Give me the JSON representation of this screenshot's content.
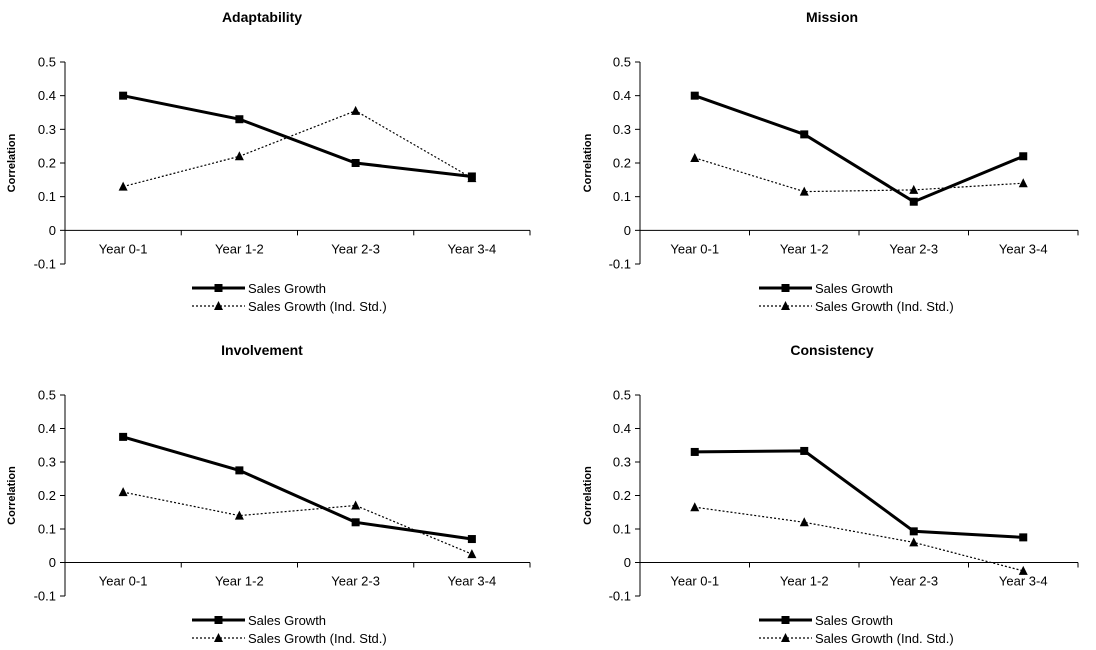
{
  "colors": {
    "line": "#000000",
    "background": "#ffffff"
  },
  "chart_data": [
    {
      "type": "line",
      "title": "Adaptability",
      "ylabel": "Correlation",
      "xlabel": "",
      "categories": [
        "Year 0-1",
        "Year 1-2",
        "Year 2-3",
        "Year 3-4"
      ],
      "ylim": [
        -0.1,
        0.5
      ],
      "yticks": [
        "0.5",
        "0.4",
        "0.3",
        "0.2",
        "0.1",
        "0",
        "-0.1"
      ],
      "grid": false,
      "legend_position": "bottom",
      "series": [
        {
          "name": "Sales Growth",
          "style": "solid",
          "marker": "square",
          "values": [
            0.4,
            0.33,
            0.2,
            0.16
          ]
        },
        {
          "name": "Sales Growth (Ind. Std.)",
          "style": "dotted",
          "marker": "triangle",
          "values": [
            0.13,
            0.22,
            0.355,
            0.155
          ]
        }
      ]
    },
    {
      "type": "line",
      "title": "Mission",
      "ylabel": "Correlation",
      "xlabel": "",
      "categories": [
        "Year 0-1",
        "Year 1-2",
        "Year 2-3",
        "Year 3-4"
      ],
      "ylim": [
        -0.1,
        0.5
      ],
      "yticks": [
        "0.5",
        "0.4",
        "0.3",
        "0.2",
        "0.1",
        "0",
        "-0.1"
      ],
      "grid": false,
      "legend_position": "bottom",
      "series": [
        {
          "name": "Sales Growth",
          "style": "solid",
          "marker": "square",
          "values": [
            0.4,
            0.285,
            0.085,
            0.22
          ]
        },
        {
          "name": "Sales Growth (Ind. Std.)",
          "style": "dotted",
          "marker": "triangle",
          "values": [
            0.215,
            0.115,
            0.12,
            0.14
          ]
        }
      ]
    },
    {
      "type": "line",
      "title": "Involvement",
      "ylabel": "Correlation",
      "xlabel": "",
      "categories": [
        "Year 0-1",
        "Year 1-2",
        "Year 2-3",
        "Year 3-4"
      ],
      "ylim": [
        -0.1,
        0.5
      ],
      "yticks": [
        "0.5",
        "0.4",
        "0.3",
        "0.2",
        "0.1",
        "0",
        "-0.1"
      ],
      "grid": false,
      "legend_position": "bottom",
      "series": [
        {
          "name": "Sales Growth",
          "style": "solid",
          "marker": "square",
          "values": [
            0.375,
            0.275,
            0.12,
            0.07
          ]
        },
        {
          "name": "Sales Growth (Ind. Std.)",
          "style": "dotted",
          "marker": "triangle",
          "values": [
            0.21,
            0.14,
            0.17,
            0.025
          ]
        }
      ]
    },
    {
      "type": "line",
      "title": "Consistency",
      "ylabel": "Correlation",
      "xlabel": "",
      "categories": [
        "Year 0-1",
        "Year 1-2",
        "Year 2-3",
        "Year 3-4"
      ],
      "ylim": [
        -0.1,
        0.5
      ],
      "yticks": [
        "0.5",
        "0.4",
        "0.3",
        "0.2",
        "0.1",
        "0",
        "-0.1"
      ],
      "grid": false,
      "legend_position": "bottom",
      "series": [
        {
          "name": "Sales Growth",
          "style": "solid",
          "marker": "square",
          "values": [
            0.33,
            0.333,
            0.093,
            0.075
          ]
        },
        {
          "name": "Sales Growth (Ind. Std.)",
          "style": "dotted",
          "marker": "triangle",
          "values": [
            0.165,
            0.12,
            0.06,
            -0.025
          ]
        }
      ]
    }
  ]
}
